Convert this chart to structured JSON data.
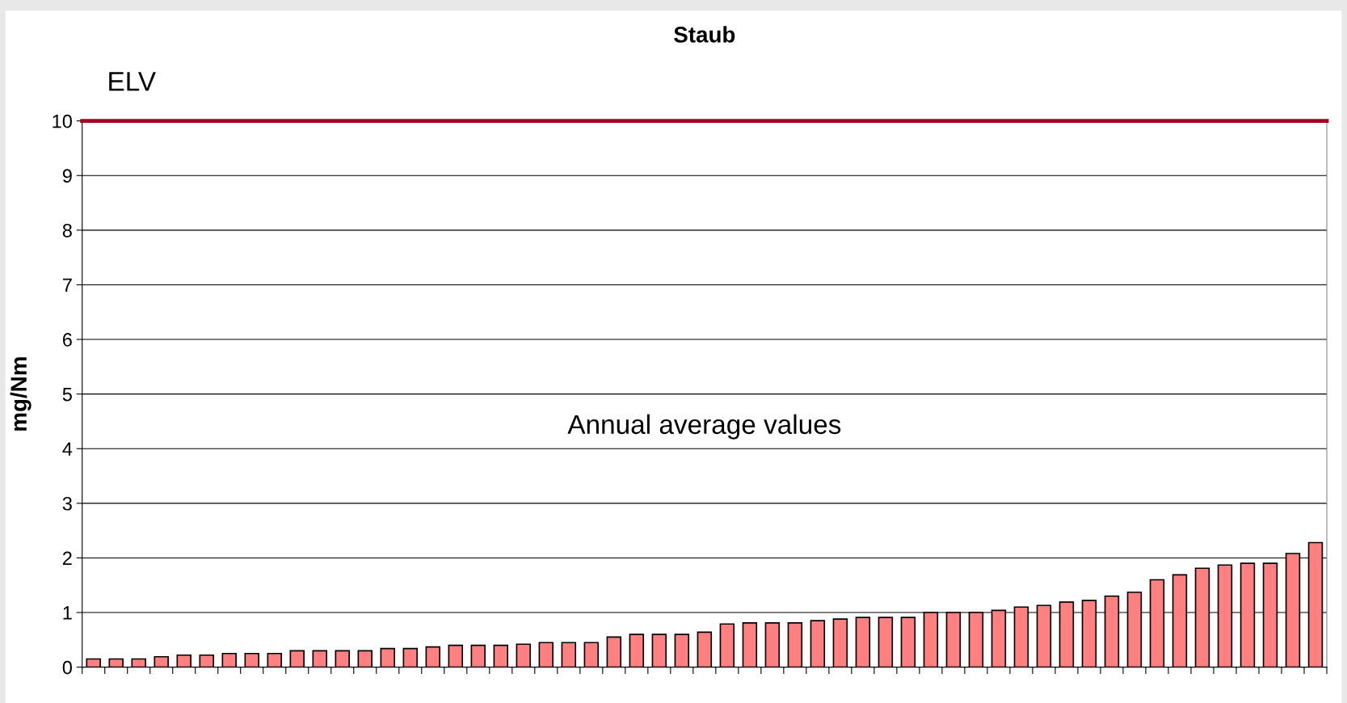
{
  "chart_data": {
    "type": "bar",
    "title": "Staub",
    "ylabel": "mg/Nm",
    "categories": [
      null,
      null,
      null,
      null,
      null,
      null,
      null,
      null,
      null,
      null,
      null,
      null,
      null,
      null,
      null,
      null,
      null,
      null,
      null,
      null,
      null,
      null,
      null,
      null,
      null,
      null,
      null,
      null,
      null,
      null,
      null,
      null,
      null,
      null,
      null,
      null,
      null,
      null,
      null,
      null,
      null,
      null,
      null,
      null,
      null,
      null,
      null,
      null,
      null,
      null,
      null,
      null,
      null,
      null,
      null
    ],
    "values": [
      0.15,
      0.15,
      0.15,
      0.19,
      0.22,
      0.22,
      0.25,
      0.25,
      0.25,
      0.3,
      0.3,
      0.3,
      0.3,
      0.34,
      0.34,
      0.37,
      0.4,
      0.4,
      0.4,
      0.42,
      0.45,
      0.45,
      0.45,
      0.55,
      0.6,
      0.6,
      0.6,
      0.64,
      0.79,
      0.81,
      0.81,
      0.81,
      0.85,
      0.88,
      0.91,
      0.91,
      0.91,
      1.0,
      1.0,
      1.0,
      1.04,
      1.1,
      1.13,
      1.19,
      1.22,
      1.3,
      1.37,
      1.6,
      1.69,
      1.81,
      1.87,
      1.9,
      1.9,
      2.08,
      2.28
    ],
    "color": "#ff8080",
    "ylim": [
      0,
      10
    ],
    "yticks": [
      0,
      1,
      2,
      3,
      4,
      5,
      6,
      7,
      8,
      9,
      10
    ],
    "grid": "y",
    "ref_lines": [
      {
        "axis": "y",
        "value": 10,
        "label": "ELV",
        "color": "#a50021"
      }
    ],
    "annotations": [
      "Annual average values"
    ]
  }
}
